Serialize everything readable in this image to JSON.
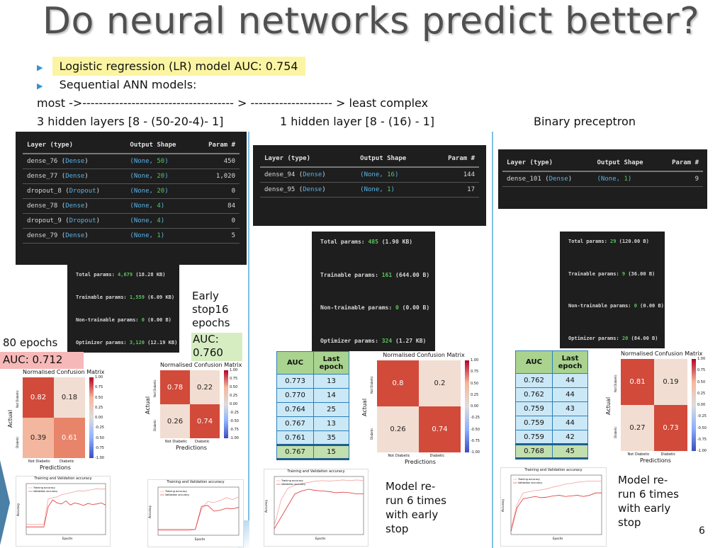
{
  "title": "Do neural networks predict better?",
  "bullets": [
    "Logistic regression (LR) model AUC: 0.754",
    "Sequential ANN models:"
  ],
  "complexity_line": "most ->------------------------------------- > -------------------- > least complex",
  "model_headers": [
    "3 hidden layers [8 - (50-20-4)- 1]",
    "1 hidden layer [8 - (16) - 1]",
    "Binary preceptron"
  ],
  "summary_headers": [
    "Layer (type)",
    "Output Shape",
    "Param #"
  ],
  "model1": {
    "rows": [
      {
        "name": "dense_76",
        "type": "Dense",
        "shape_prefix": "(None, ",
        "shape_n": "50",
        "shape_suffix": ")",
        "params": "450"
      },
      {
        "name": "dense_77",
        "type": "Dense",
        "shape_prefix": "(None, ",
        "shape_n": "20",
        "shape_suffix": ")",
        "params": "1,020"
      },
      {
        "name": "dropout_8",
        "type": "Dropout",
        "shape_prefix": "(None, ",
        "shape_n": "20",
        "shape_suffix": ")",
        "params": "0"
      },
      {
        "name": "dense_78",
        "type": "Dense",
        "shape_prefix": "(None, ",
        "shape_n": "4",
        "shape_suffix": ")",
        "params": "84"
      },
      {
        "name": "dropout_9",
        "type": "Dropout",
        "shape_prefix": "(None, ",
        "shape_n": "4",
        "shape_suffix": ")",
        "params": "0"
      },
      {
        "name": "dense_79",
        "type": "Dense",
        "shape_prefix": "(None, ",
        "shape_n": "1",
        "shape_suffix": ")",
        "params": "5"
      }
    ],
    "params": [
      {
        "label": "Total params:",
        "value": "4,679",
        "size": "(18.28 KB)"
      },
      {
        "label": "Trainable params:",
        "value": "1,559",
        "size": "(6.09 KB)"
      },
      {
        "label": "Non-trainable params:",
        "value": "0",
        "size": "(0.00 B)"
      },
      {
        "label": "Optimizer params:",
        "value": "3,120",
        "size": "(12.19 KB)"
      }
    ],
    "epochs_label": "80 epochs",
    "auc_label": "AUC: 0.712",
    "early_label_lines": [
      "Early",
      "stop16",
      "epochs"
    ],
    "early_auc_lines": [
      "AUC:",
      "0.760"
    ],
    "cm_a": {
      "values": [
        "0.82",
        "0.18",
        "0.39",
        "0.61"
      ]
    },
    "cm_b": {
      "values": [
        "0.78",
        "0.22",
        "0.26",
        "0.74"
      ]
    }
  },
  "model2": {
    "rows": [
      {
        "name": "dense_94",
        "type": "Dense",
        "shape_prefix": "(None, ",
        "shape_n": "16",
        "shape_suffix": ")",
        "params": "144"
      },
      {
        "name": "dense_95",
        "type": "Dense",
        "shape_prefix": "(None, ",
        "shape_n": "1",
        "shape_suffix": ")",
        "params": "17"
      }
    ],
    "params": [
      {
        "label": "Total params:",
        "value": "485",
        "size": "(1.90 KB)"
      },
      {
        "label": "Trainable params:",
        "value": "161",
        "size": "(644.00 B)"
      },
      {
        "label": "Non-trainable params:",
        "value": "0",
        "size": "(0.00 B)"
      },
      {
        "label": "Optimizer params:",
        "value": "324",
        "size": "(1.27 KB)"
      }
    ],
    "auc_table": {
      "headers": [
        "AUC",
        "Last epoch"
      ],
      "rows": [
        [
          "0.773",
          "13"
        ],
        [
          "0.770",
          "14"
        ],
        [
          "0.764",
          "25"
        ],
        [
          "0.767",
          "13"
        ],
        [
          "0.761",
          "35"
        ],
        [
          "0.767",
          "15"
        ]
      ]
    },
    "cm": {
      "values": [
        "0.8",
        "0.2",
        "0.26",
        "0.74"
      ]
    },
    "note_lines": [
      "Model re-",
      "run 6 times",
      "with early",
      "stop"
    ]
  },
  "model3": {
    "rows": [
      {
        "name": "dense_101",
        "type": "Dense",
        "shape_prefix": "(None, ",
        "shape_n": "1",
        "shape_suffix": ")",
        "params": "9"
      }
    ],
    "params": [
      {
        "label": "Total params:",
        "value": "29",
        "size": "(120.00 B)"
      },
      {
        "label": "Trainable params:",
        "value": "9",
        "size": "(36.00 B)"
      },
      {
        "label": "Non-trainable params:",
        "value": "0",
        "size": "(0.00 B)"
      },
      {
        "label": "Optimizer params:",
        "value": "20",
        "size": "(84.00 B)"
      }
    ],
    "auc_table": {
      "headers": [
        "AUC",
        "Last epoch"
      ],
      "rows": [
        [
          "0.762",
          "44"
        ],
        [
          "0.762",
          "44"
        ],
        [
          "0.759",
          "43"
        ],
        [
          "0.759",
          "44"
        ],
        [
          "0.759",
          "42"
        ],
        [
          "0.768",
          "45"
        ]
      ]
    },
    "cm": {
      "values": [
        "0.81",
        "0.19",
        "0.27",
        "0.73"
      ]
    },
    "note_lines": [
      "Model re-",
      "run 6 times",
      "with early",
      "stop"
    ]
  },
  "cm_labels": {
    "title": "Normalised Confusion Matrix",
    "ylabel": "Actual",
    "xlabel": "Predictions",
    "row_labels": [
      "Not Diabetic",
      "Diabetic"
    ],
    "col_labels": [
      "Not Diabetic",
      "Diabetic"
    ],
    "colorbar_ticks": [
      "1.00",
      "0.75",
      "0.50",
      "0.25",
      "0.00",
      "-0.25",
      "-0.50",
      "-0.75",
      "-1.00"
    ]
  },
  "plot_title": "Training and Validation accuracy",
  "plot_legend": [
    "Training accuracy",
    "Validation accuracy"
  ],
  "plot_xlabel": "Epochs",
  "plot_ylabel": "Accuracy",
  "page_number": "6",
  "colors": {
    "training": "#f2a0a0",
    "validation": "#e03030",
    "heat_high": "#d24a3a",
    "heat_low": "#f0d8cc"
  }
}
